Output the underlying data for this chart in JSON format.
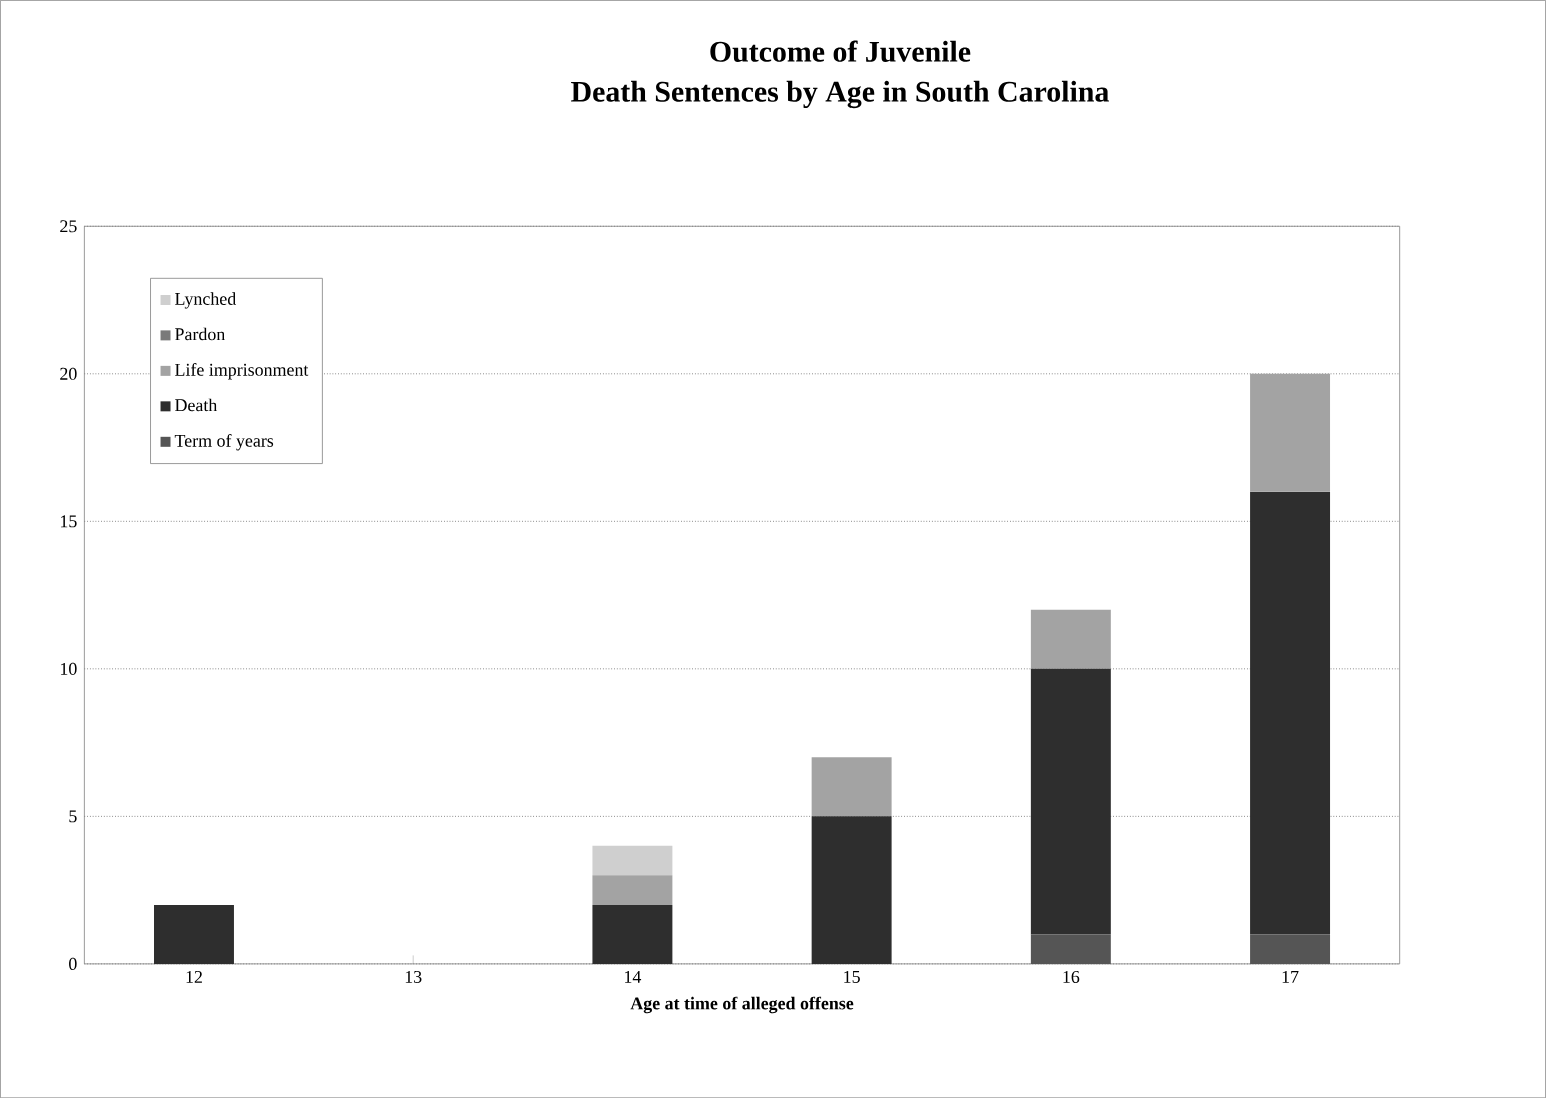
{
  "chart_data": {
    "type": "bar",
    "stacked": true,
    "title": "Outcome of Juvenile\nDeath Sentences by Age in South Carolina",
    "xlabel": "Age at time of alleged offense",
    "categories": [
      "12",
      "13",
      "14",
      "15",
      "16",
      "17"
    ],
    "series": [
      {
        "name": "Term of years",
        "color": "#555555",
        "values": [
          0,
          0,
          0,
          0,
          1,
          1
        ]
      },
      {
        "name": "Death",
        "color": "#2e2e2e",
        "values": [
          2,
          0,
          2,
          5,
          9,
          15
        ]
      },
      {
        "name": "Life imprisonment",
        "color": "#a3a3a3",
        "values": [
          0,
          0,
          1,
          2,
          2,
          4
        ]
      },
      {
        "name": "Pardon",
        "color": "#7a7a7a",
        "values": [
          0,
          0,
          0,
          0,
          0,
          0
        ]
      },
      {
        "name": "Lynched",
        "color": "#cfcfcf",
        "values": [
          0,
          0,
          1,
          0,
          0,
          0
        ]
      }
    ],
    "ylim": [
      0,
      25
    ],
    "yticks": [
      0,
      5,
      10,
      15,
      20,
      25
    ],
    "grid": "y",
    "legend": "top left"
  }
}
